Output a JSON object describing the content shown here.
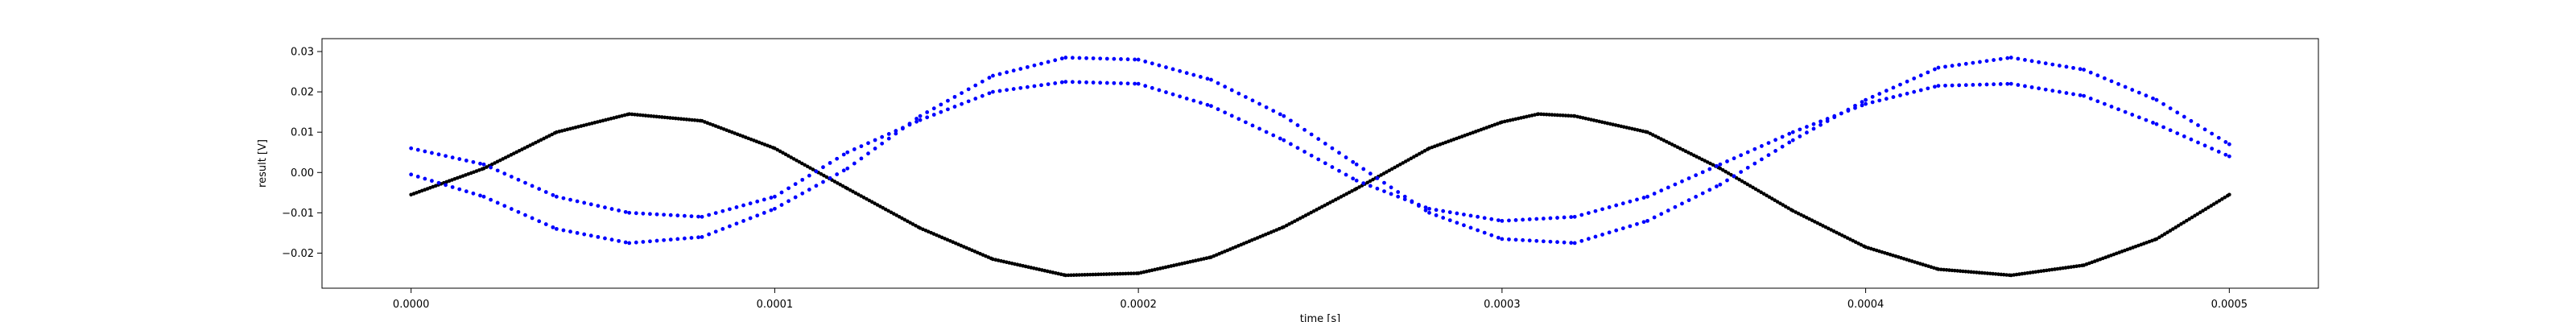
{
  "chart_data": {
    "type": "scatter",
    "xlabel": "time [s]",
    "ylabel": "result [V]",
    "xlim": [
      -2.45e-05,
      0.0005245
    ],
    "ylim": [
      -0.0287,
      0.0332
    ],
    "xticks": [
      0.0,
      0.0001,
      0.0002,
      0.0003,
      0.0004,
      0.0005
    ],
    "xtick_labels": [
      "0.0000",
      "0.0001",
      "0.0002",
      "0.0003",
      "0.0004",
      "0.0005"
    ],
    "yticks": [
      -0.02,
      -0.01,
      0.0,
      0.01,
      0.02,
      0.03
    ],
    "ytick_labels": [
      "−0.02",
      "−0.01",
      "0.00",
      "0.01",
      "0.02",
      "0.03"
    ],
    "grid": false,
    "legend": "none",
    "series": [
      {
        "color": "#000000",
        "marker": "dense dots",
        "points": [
          [
            0.0,
            -0.0055
          ],
          [
            2e-05,
            0.001
          ],
          [
            4e-05,
            0.01
          ],
          [
            6e-05,
            0.0145
          ],
          [
            8e-05,
            0.0128
          ],
          [
            0.0001,
            0.006
          ],
          [
            0.00012,
            -0.004
          ],
          [
            0.00014,
            -0.0138
          ],
          [
            0.00016,
            -0.0215
          ],
          [
            0.00018,
            -0.0255
          ],
          [
            0.0002,
            -0.025
          ],
          [
            0.00022,
            -0.021
          ],
          [
            0.00024,
            -0.0135
          ],
          [
            0.00026,
            -0.004
          ],
          [
            0.00028,
            0.006
          ],
          [
            0.0003,
            0.0125
          ],
          [
            0.00031,
            0.0145
          ],
          [
            0.00032,
            0.014
          ],
          [
            0.00034,
            0.01
          ],
          [
            0.00036,
            0.001
          ],
          [
            0.00038,
            -0.0095
          ],
          [
            0.0004,
            -0.0185
          ],
          [
            0.00042,
            -0.024
          ],
          [
            0.00044,
            -0.0255
          ],
          [
            0.00046,
            -0.023
          ],
          [
            0.00048,
            -0.0165
          ],
          [
            0.0005,
            -0.0055
          ]
        ]
      },
      {
        "color": "#0000ff",
        "marker": "small dots",
        "points": [
          [
            0.0,
            0.006
          ],
          [
            2e-05,
            0.002
          ],
          [
            4e-05,
            -0.006
          ],
          [
            6e-05,
            -0.01
          ],
          [
            8e-05,
            -0.011
          ],
          [
            0.0001,
            -0.006
          ],
          [
            0.00012,
            0.005
          ],
          [
            0.00014,
            0.013
          ],
          [
            0.00016,
            0.02
          ],
          [
            0.00018,
            0.0225
          ],
          [
            0.0002,
            0.022
          ],
          [
            0.00022,
            0.0165
          ],
          [
            0.00024,
            0.008
          ],
          [
            0.00026,
            -0.002
          ],
          [
            0.00028,
            -0.009
          ],
          [
            0.0003,
            -0.012
          ],
          [
            0.00032,
            -0.011
          ],
          [
            0.00034,
            -0.006
          ],
          [
            0.00036,
            0.002
          ],
          [
            0.00038,
            0.01
          ],
          [
            0.0004,
            0.017
          ],
          [
            0.00042,
            0.0215
          ],
          [
            0.00044,
            0.022
          ],
          [
            0.00046,
            0.019
          ],
          [
            0.00048,
            0.012
          ],
          [
            0.0005,
            0.004
          ]
        ]
      },
      {
        "color": "#0000ff",
        "marker": "small dots",
        "points": [
          [
            0.0,
            -0.0005
          ],
          [
            2e-05,
            -0.006
          ],
          [
            4e-05,
            -0.014
          ],
          [
            6e-05,
            -0.0175
          ],
          [
            8e-05,
            -0.016
          ],
          [
            0.0001,
            -0.009
          ],
          [
            0.00012,
            0.001
          ],
          [
            0.00014,
            0.014
          ],
          [
            0.00016,
            0.024
          ],
          [
            0.00018,
            0.0285
          ],
          [
            0.0002,
            0.028
          ],
          [
            0.00022,
            0.023
          ],
          [
            0.00024,
            0.014
          ],
          [
            0.00026,
            0.002
          ],
          [
            0.00028,
            -0.01
          ],
          [
            0.0003,
            -0.0165
          ],
          [
            0.00032,
            -0.0175
          ],
          [
            0.00034,
            -0.012
          ],
          [
            0.00036,
            -0.003
          ],
          [
            0.00038,
            0.008
          ],
          [
            0.0004,
            0.018
          ],
          [
            0.00042,
            0.026
          ],
          [
            0.00044,
            0.0285
          ],
          [
            0.00046,
            0.0255
          ],
          [
            0.00048,
            0.018
          ],
          [
            0.0005,
            0.007
          ]
        ]
      }
    ]
  }
}
